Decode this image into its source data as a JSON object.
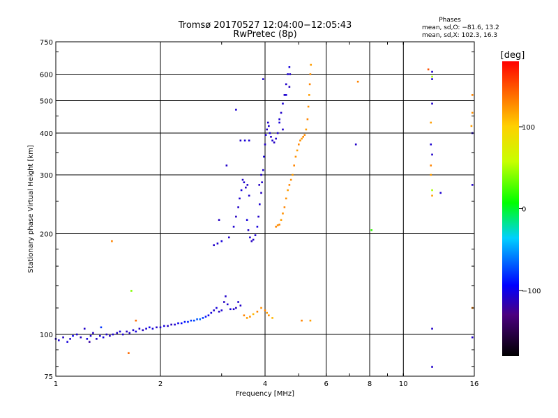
{
  "chart_data": {
    "type": "scatter",
    "title": "Tromsø 20170527 12:04:00−12:05:43",
    "subtitle": "RwPretec (8p)",
    "phases_header": "Phases",
    "phases_stats": [
      "mean, sd,O: −81.6, 13.2",
      "mean, sd,X: 102.3, 16.3"
    ],
    "xlabel": "Frequency [MHz]",
    "ylabel": "Stationary phase Virtual Height [km]",
    "x_scale": "log",
    "y_scale": "log",
    "xlim": [
      1,
      16
    ],
    "ylim": [
      75,
      750
    ],
    "x_ticks": [
      {
        "value": 1,
        "label": "1"
      },
      {
        "value": 2,
        "label": "2"
      },
      {
        "value": 4,
        "label": "4"
      },
      {
        "value": 6,
        "label": "6"
      },
      {
        "value": 8,
        "label": "8"
      },
      {
        "value": 10,
        "label": "10"
      },
      {
        "value": 16,
        "label": "16"
      }
    ],
    "y_ticks": [
      {
        "value": 75,
        "label": "75"
      },
      {
        "value": 100,
        "label": "100"
      },
      {
        "value": 200,
        "label": "200"
      },
      {
        "value": 300,
        "label": "300"
      },
      {
        "value": 400,
        "label": "400"
      },
      {
        "value": 500,
        "label": "500"
      },
      {
        "value": 600,
        "label": "600"
      },
      {
        "value": 750,
        "label": "750"
      }
    ],
    "grid": true,
    "colorbar": {
      "label": "[deg]",
      "range": [
        -180,
        180
      ],
      "ticks": [
        {
          "value": 100,
          "label": "100"
        },
        {
          "value": 0,
          "label": "0"
        },
        {
          "value": -100,
          "label": "−100"
        }
      ]
    },
    "series": [
      {
        "points": [
          [
            1.0,
            97,
            -110
          ],
          [
            1.02,
            96,
            -108
          ],
          [
            1.05,
            98,
            -112
          ],
          [
            1.08,
            95,
            -105
          ],
          [
            1.1,
            97,
            -110
          ],
          [
            1.12,
            99,
            -100
          ],
          [
            1.15,
            100,
            -108
          ],
          [
            1.18,
            98,
            -112
          ],
          [
            1.21,
            104,
            -110
          ],
          [
            1.23,
            97,
            -105
          ],
          [
            1.26,
            99,
            -108
          ],
          [
            1.28,
            101,
            -112
          ],
          [
            1.31,
            97,
            -110
          ],
          [
            1.34,
            99,
            -108
          ],
          [
            1.37,
            98,
            -105
          ],
          [
            1.4,
            100,
            -110
          ],
          [
            1.43,
            99,
            -112
          ],
          [
            1.46,
            100,
            -108
          ],
          [
            1.5,
            101,
            -110
          ],
          [
            1.53,
            102,
            -105
          ],
          [
            1.56,
            100,
            -108
          ],
          [
            1.6,
            102,
            -112
          ],
          [
            1.63,
            101,
            -110
          ],
          [
            1.67,
            103,
            -108
          ],
          [
            1.7,
            102,
            -105
          ],
          [
            1.74,
            104,
            -110
          ],
          [
            1.78,
            103,
            -112
          ],
          [
            1.82,
            104,
            -108
          ],
          [
            1.86,
            105,
            -100
          ],
          [
            1.9,
            104,
            -105
          ],
          [
            1.95,
            105,
            -110
          ],
          [
            2.0,
            105,
            -108
          ],
          [
            2.05,
            106,
            -105
          ],
          [
            2.1,
            106,
            -110
          ],
          [
            2.15,
            107,
            -112
          ],
          [
            2.2,
            107,
            -108
          ],
          [
            2.25,
            108,
            -100
          ],
          [
            2.3,
            108,
            -95
          ],
          [
            2.35,
            109,
            -90
          ],
          [
            2.4,
            109,
            -85
          ],
          [
            2.45,
            110,
            -80
          ],
          [
            2.5,
            110,
            -75
          ],
          [
            2.55,
            111,
            -70
          ],
          [
            2.6,
            111,
            -65
          ],
          [
            2.65,
            112,
            -80
          ],
          [
            2.7,
            113,
            -90
          ],
          [
            2.75,
            114,
            -100
          ],
          [
            2.8,
            116,
            -105
          ],
          [
            2.85,
            118,
            -110
          ],
          [
            2.9,
            120,
            -105
          ],
          [
            2.95,
            117,
            -110
          ],
          [
            3.0,
            118,
            -108
          ],
          [
            3.05,
            125,
            -112
          ],
          [
            3.08,
            130,
            -110
          ],
          [
            3.12,
            123,
            -108
          ],
          [
            3.18,
            119,
            -105
          ],
          [
            3.25,
            119,
            -110
          ],
          [
            3.3,
            120,
            -112
          ],
          [
            3.35,
            125,
            -108
          ],
          [
            3.4,
            122,
            -110
          ],
          [
            3.48,
            114,
            130
          ],
          [
            3.55,
            112,
            120
          ],
          [
            3.62,
            113,
            125
          ],
          [
            3.7,
            115,
            110
          ],
          [
            3.8,
            117,
            130
          ],
          [
            3.9,
            120,
            125
          ],
          [
            4.0,
            118,
            130
          ],
          [
            4.05,
            116,
            120
          ],
          [
            4.1,
            114,
            125
          ],
          [
            4.2,
            112,
            110
          ],
          [
            1.65,
            135,
            40
          ],
          [
            1.62,
            88,
            140
          ],
          [
            1.45,
            190,
            130
          ],
          [
            1.7,
            110,
            140
          ],
          [
            1.25,
            95,
            -120
          ],
          [
            1.35,
            105,
            -80
          ],
          [
            5.1,
            110,
            130
          ],
          [
            5.4,
            110,
            120
          ],
          [
            2.85,
            185,
            -110
          ],
          [
            2.92,
            187,
            -108
          ],
          [
            3.0,
            190,
            -105
          ],
          [
            3.15,
            195,
            -110
          ],
          [
            3.25,
            210,
            -108
          ],
          [
            3.3,
            225,
            -112
          ],
          [
            3.35,
            240,
            -110
          ],
          [
            3.38,
            255,
            -108
          ],
          [
            3.42,
            270,
            -105
          ],
          [
            3.45,
            290,
            -110
          ],
          [
            3.48,
            285,
            -108
          ],
          [
            3.52,
            275,
            -112
          ],
          [
            3.56,
            280,
            -110
          ],
          [
            3.6,
            260,
            -108
          ],
          [
            3.55,
            220,
            -105
          ],
          [
            3.58,
            205,
            -110
          ],
          [
            3.62,
            195,
            -108
          ],
          [
            3.66,
            190,
            -112
          ],
          [
            3.7,
            192,
            -110
          ],
          [
            3.75,
            198,
            -108
          ],
          [
            3.8,
            210,
            -105
          ],
          [
            3.83,
            225,
            -110
          ],
          [
            3.86,
            245,
            -108
          ],
          [
            3.9,
            265,
            -112
          ],
          [
            3.92,
            285,
            -110
          ],
          [
            3.95,
            310,
            -108
          ],
          [
            3.97,
            340,
            -105
          ],
          [
            4.0,
            370,
            -110
          ],
          [
            4.02,
            395,
            -108
          ],
          [
            4.05,
            410,
            -112
          ],
          [
            4.08,
            430,
            -110
          ],
          [
            4.1,
            420,
            -108
          ],
          [
            4.13,
            400,
            -105
          ],
          [
            4.16,
            390,
            -110
          ],
          [
            4.2,
            380,
            -108
          ],
          [
            4.25,
            375,
            -112
          ],
          [
            4.3,
            385,
            -110
          ],
          [
            4.35,
            400,
            -108
          ],
          [
            4.4,
            430,
            -105
          ],
          [
            4.45,
            460,
            -110
          ],
          [
            4.5,
            490,
            -108
          ],
          [
            4.55,
            520,
            -112
          ],
          [
            4.6,
            560,
            -110
          ],
          [
            4.65,
            600,
            -108
          ],
          [
            4.7,
            630,
            -105
          ],
          [
            4.72,
            600,
            -110
          ],
          [
            3.95,
            580,
            -108
          ],
          [
            3.9,
            300,
            -110
          ],
          [
            3.85,
            280,
            -112
          ],
          [
            3.6,
            380,
            -108
          ],
          [
            3.5,
            380,
            -105
          ],
          [
            3.4,
            380,
            -110
          ],
          [
            3.3,
            470,
            -108
          ],
          [
            3.1,
            320,
            -110
          ],
          [
            2.95,
            220,
            -112
          ],
          [
            4.4,
            440,
            -108
          ],
          [
            4.5,
            410,
            -110
          ],
          [
            4.6,
            520,
            -105
          ],
          [
            4.7,
            550,
            -112
          ],
          [
            4.3,
            210,
            130
          ],
          [
            4.35,
            212,
            125
          ],
          [
            4.4,
            213,
            130
          ],
          [
            4.45,
            220,
            120
          ],
          [
            4.5,
            230,
            125
          ],
          [
            4.55,
            240,
            130
          ],
          [
            4.6,
            255,
            125
          ],
          [
            4.65,
            270,
            120
          ],
          [
            4.7,
            280,
            130
          ],
          [
            4.75,
            290,
            125
          ],
          [
            4.8,
            300,
            120
          ],
          [
            4.85,
            320,
            130
          ],
          [
            4.9,
            340,
            125
          ],
          [
            4.95,
            355,
            120
          ],
          [
            5.0,
            370,
            130
          ],
          [
            5.05,
            380,
            125
          ],
          [
            5.1,
            385,
            120
          ],
          [
            5.15,
            390,
            130
          ],
          [
            5.2,
            395,
            125
          ],
          [
            5.25,
            410,
            120
          ],
          [
            5.3,
            440,
            130
          ],
          [
            5.33,
            480,
            125
          ],
          [
            5.36,
            520,
            120
          ],
          [
            5.38,
            560,
            130
          ],
          [
            5.4,
            600,
            125
          ],
          [
            5.42,
            640,
            120
          ],
          [
            7.4,
            570,
            130
          ],
          [
            7.3,
            370,
            -110
          ],
          [
            8.1,
            205,
            20
          ],
          [
            11.8,
            620,
            150
          ],
          [
            12.1,
            610,
            -110
          ],
          [
            12.1,
            590,
            50
          ],
          [
            12.1,
            580,
            -108
          ],
          [
            12.1,
            490,
            -110
          ],
          [
            12.0,
            430,
            120
          ],
          [
            12.0,
            370,
            -108
          ],
          [
            12.1,
            345,
            -110
          ],
          [
            12.0,
            320,
            130
          ],
          [
            12.0,
            300,
            120
          ],
          [
            12.1,
            270,
            50
          ],
          [
            12.1,
            260,
            120
          ],
          [
            12.8,
            265,
            -108
          ],
          [
            12.1,
            104,
            -110
          ],
          [
            12.1,
            80,
            -110
          ],
          [
            15.8,
            520,
            130
          ],
          [
            15.8,
            460,
            125
          ],
          [
            15.7,
            420,
            120
          ],
          [
            15.8,
            400,
            -108
          ],
          [
            15.8,
            280,
            -110
          ],
          [
            15.8,
            120,
            130
          ],
          [
            15.8,
            98,
            -110
          ]
        ]
      }
    ]
  }
}
